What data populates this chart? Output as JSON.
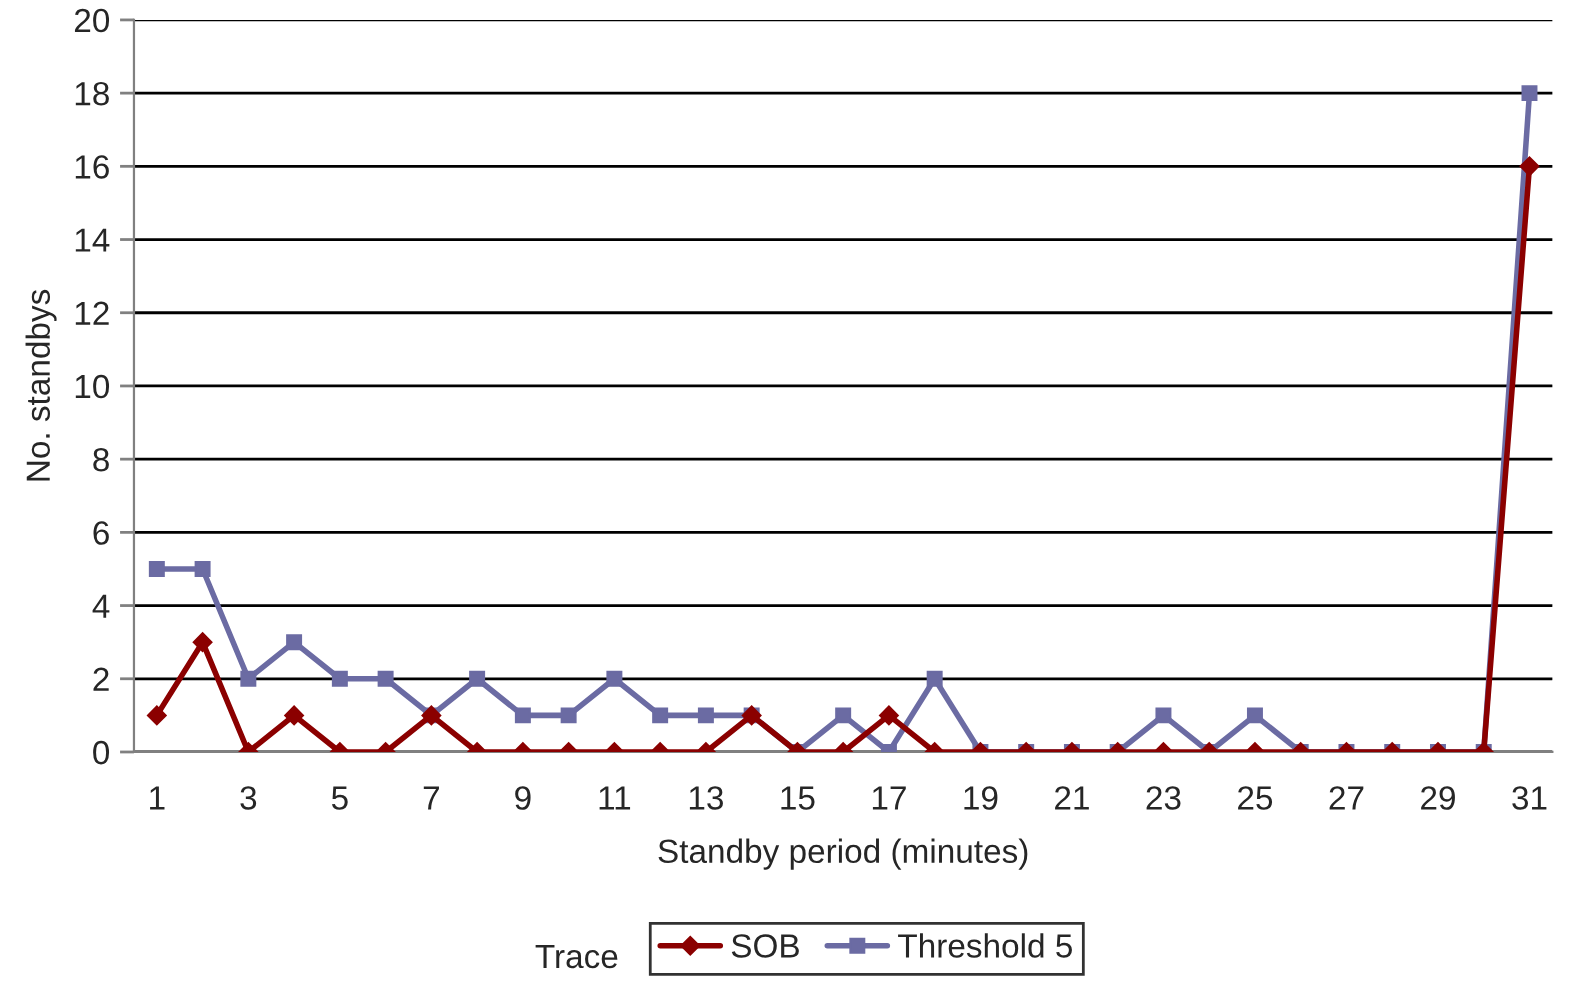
{
  "chart_data": {
    "type": "line",
    "xlabel": "Standby period (minutes)",
    "ylabel": "No. standbys",
    "legend_title": "Trace",
    "categories": [
      "1",
      null,
      "3",
      null,
      "5",
      null,
      "7",
      null,
      "9",
      null,
      "11",
      null,
      "13",
      null,
      "15",
      null,
      "17",
      null,
      "19",
      null,
      "21",
      null,
      "23",
      null,
      "25",
      null,
      "27",
      null,
      "29",
      null,
      "31"
    ],
    "series": [
      {
        "name": "SOB",
        "color": "#8b0000",
        "marker": "diamond",
        "values": [
          1,
          3,
          0,
          1,
          0,
          0,
          1,
          0,
          0,
          0,
          0,
          0,
          0,
          1,
          0,
          0,
          1,
          0,
          0,
          0,
          0,
          0,
          0,
          0,
          0,
          0,
          0,
          0,
          0,
          0,
          16
        ]
      },
      {
        "name": "Threshold 5",
        "color": "#6b6ba3",
        "marker": "square",
        "values": [
          5,
          5,
          2,
          3,
          2,
          2,
          1,
          2,
          1,
          1,
          2,
          1,
          1,
          1,
          0,
          1,
          0,
          2,
          0,
          0,
          0,
          0,
          1,
          0,
          1,
          0,
          0,
          0,
          0,
          0,
          18
        ]
      }
    ],
    "ylim": [
      0,
      20
    ],
    "yticks": [
      0,
      2,
      4,
      6,
      8,
      10,
      12,
      14,
      16,
      18,
      20
    ],
    "grid": "y",
    "legend": "bottom",
    "line_style": "solid"
  }
}
